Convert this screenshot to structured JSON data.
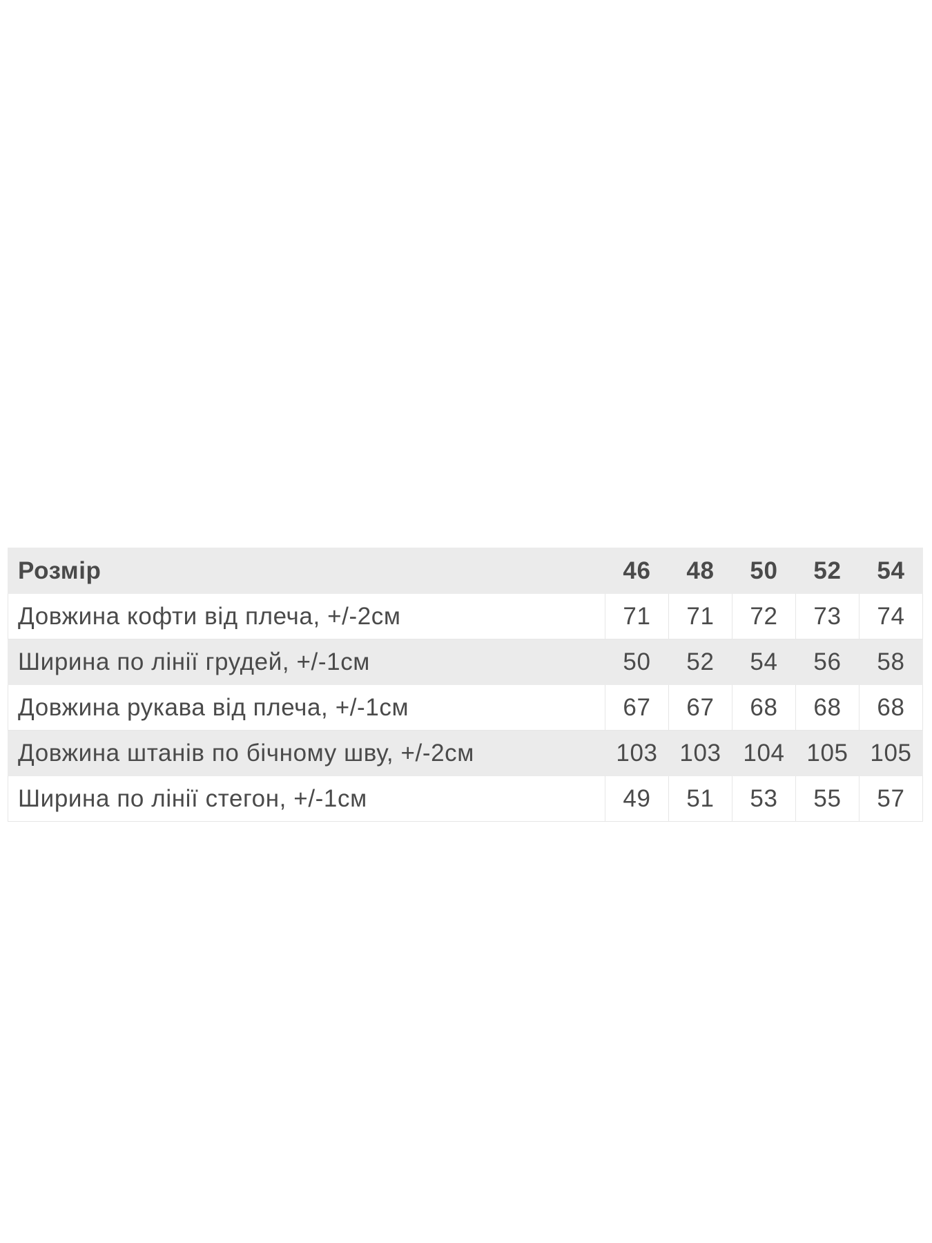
{
  "table": {
    "header": {
      "label": "Розмір",
      "sizes": [
        "46",
        "48",
        "50",
        "52",
        "54"
      ]
    },
    "rows": [
      {
        "label": "Довжина кофти від плеча, +/-2см",
        "values": [
          "71",
          "71",
          "72",
          "73",
          "74"
        ]
      },
      {
        "label": "Ширина по лінії грудей, +/-1см",
        "values": [
          "50",
          "52",
          "54",
          "56",
          "58"
        ]
      },
      {
        "label": "Довжина рукава від плеча, +/-1см",
        "values": [
          "67",
          "67",
          "68",
          "68",
          "68"
        ]
      },
      {
        "label": "Довжина штанів по бічному шву, +/-2см",
        "values": [
          "103",
          "103",
          "104",
          "105",
          "105"
        ]
      },
      {
        "label": "Ширина по лінії стегон, +/-1см",
        "values": [
          "49",
          "51",
          "53",
          "55",
          "57"
        ]
      }
    ]
  },
  "colors": {
    "row_alt": "#ebebeb",
    "text": "#4a4a4a"
  }
}
